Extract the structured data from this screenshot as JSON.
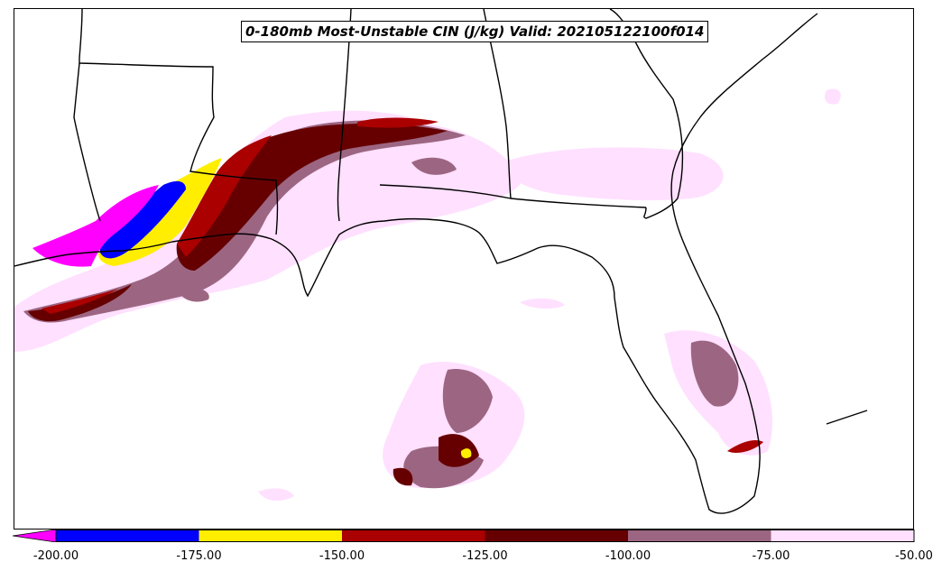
{
  "title": "0-180mb Most-Unstable CIN (J/kg) Valid: 202105122100f014",
  "colorbar": {
    "extend": "min",
    "under_color": "#ff00ff",
    "bins": [
      {
        "from": -200,
        "to": -175,
        "color": "#0000ff"
      },
      {
        "from": -175,
        "to": -150,
        "color": "#ffee00"
      },
      {
        "from": -150,
        "to": -125,
        "color": "#aa0000"
      },
      {
        "from": -125,
        "to": -100,
        "color": "#660000"
      },
      {
        "from": -100,
        "to": -75,
        "color": "#9c6682"
      },
      {
        "from": -75,
        "to": -50,
        "color": "#ffe0ff"
      }
    ],
    "tick_labels": [
      "-200.00",
      "-175.00",
      "-150.00",
      "-125.00",
      "-100.00",
      "-75.00",
      "-50.00"
    ]
  },
  "map": {
    "region": "Gulf Coast / Florida / Gulf of Mexico",
    "borders_color": "#000000",
    "ocean_color": "#ffffff"
  }
}
